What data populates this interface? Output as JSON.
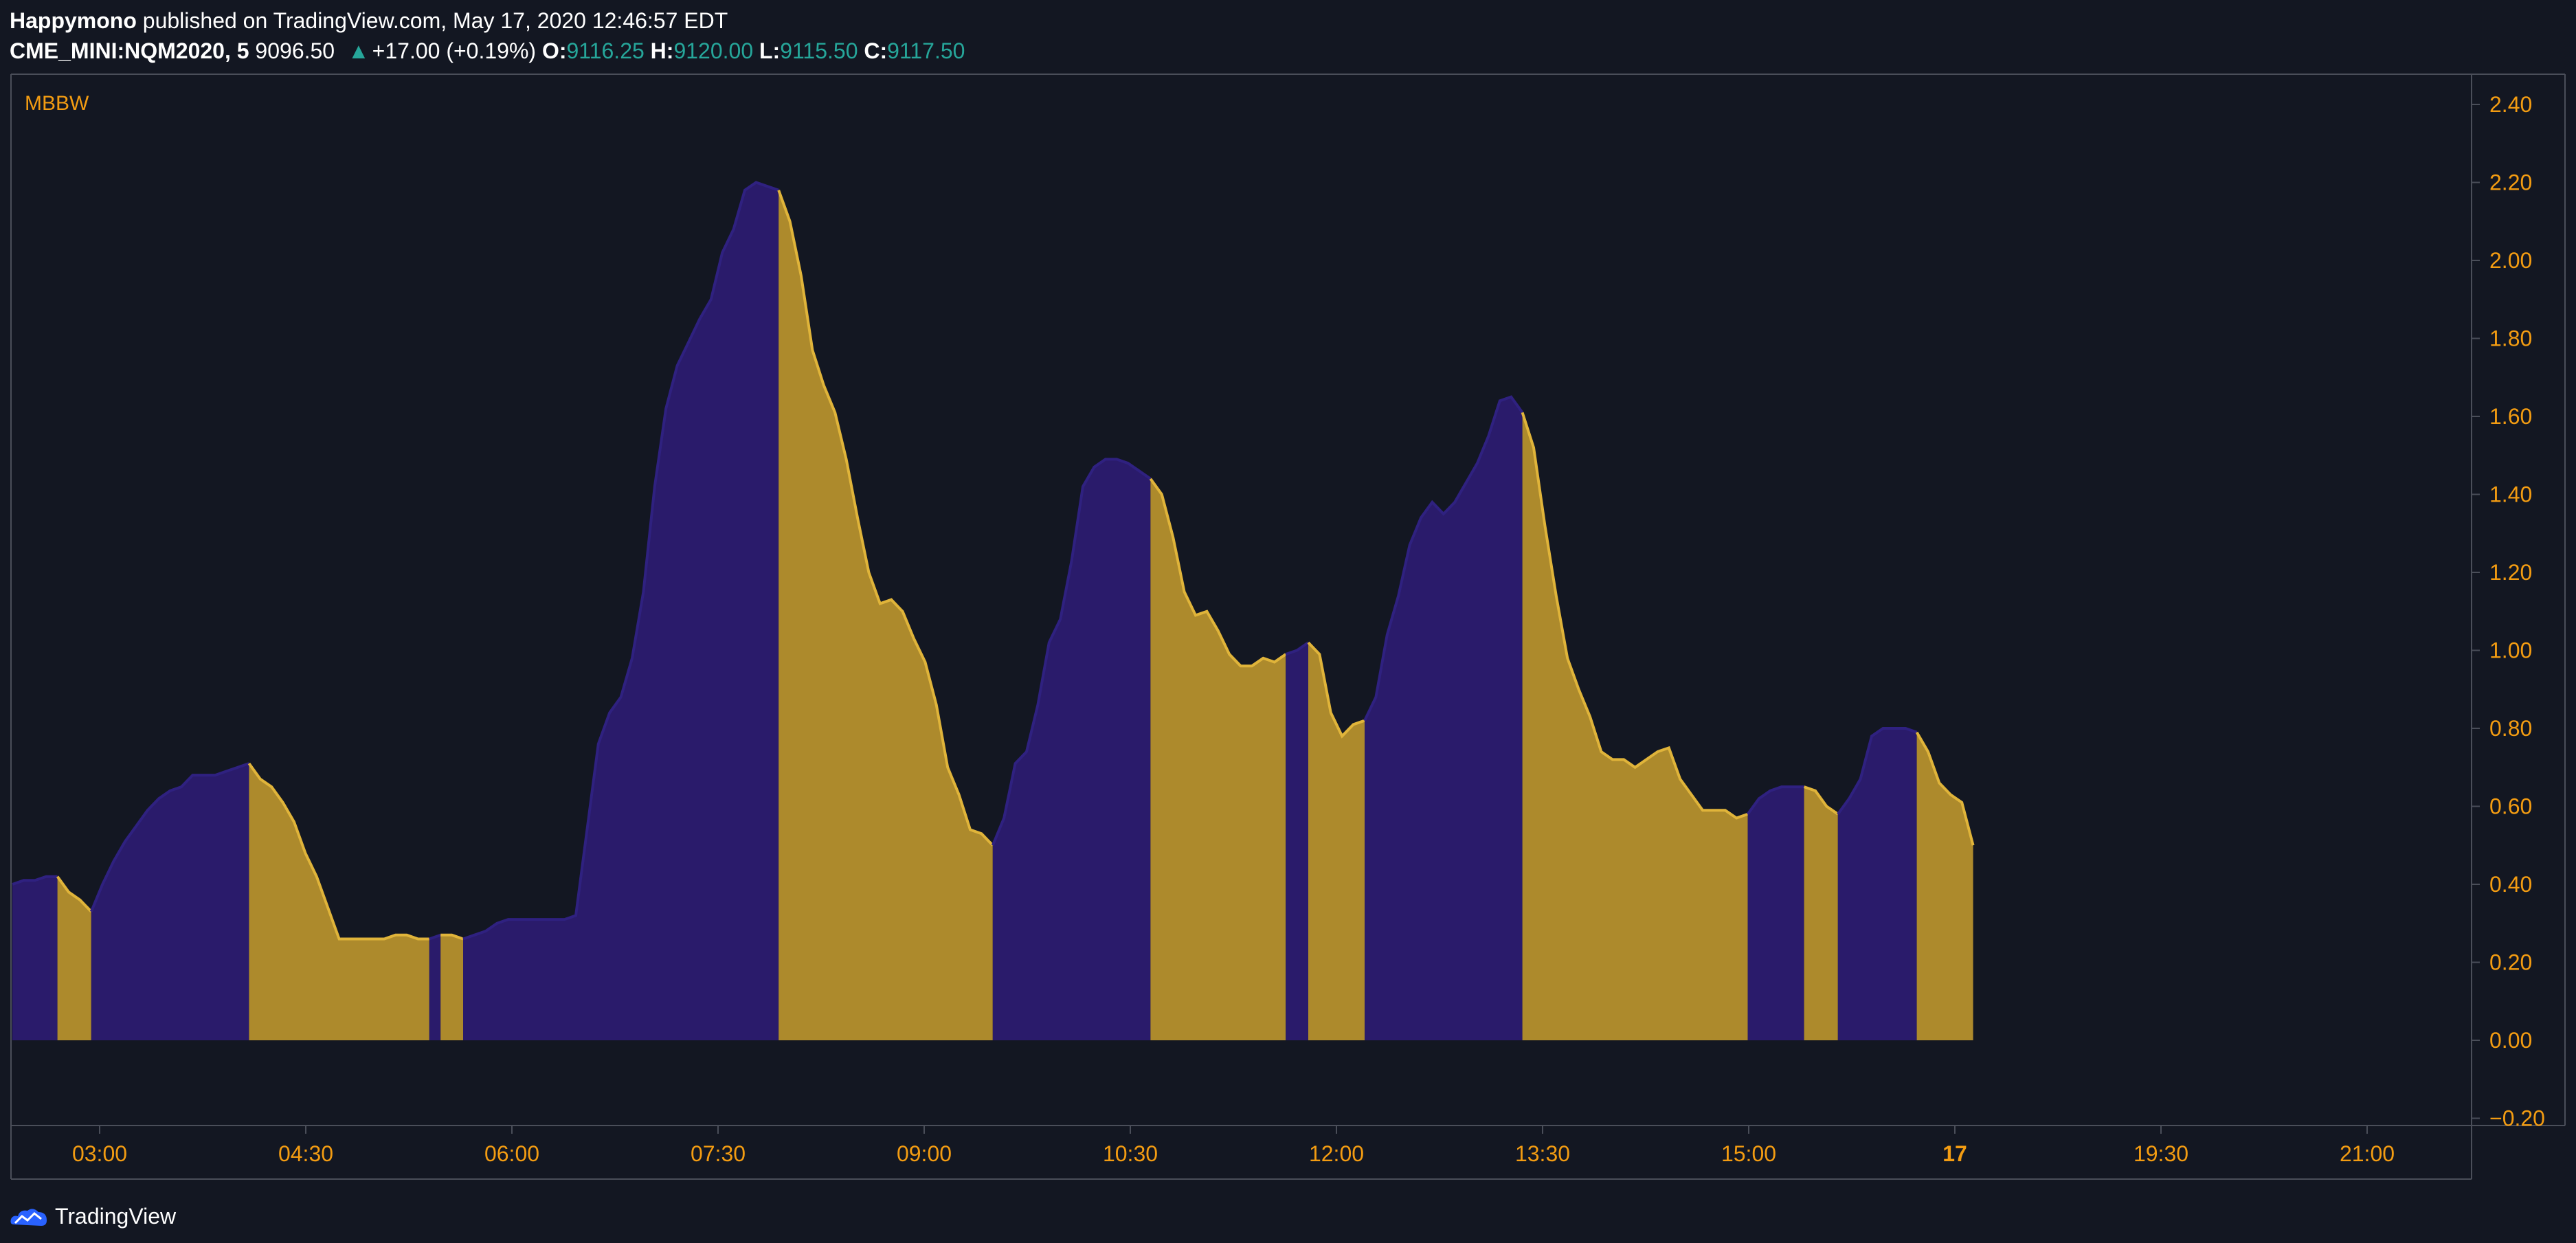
{
  "header": {
    "author": "Happymono",
    "published_text": "published on TradingView.com, May 17, 2020 12:46:57 EDT",
    "symbol": "CME_MINI:NQM2020, 5",
    "price": "9096.50",
    "change": "+17.00 (+0.19%)",
    "o_label": "O:",
    "o_value": "9116.25",
    "h_label": "H:",
    "h_value": "9120.00",
    "l_label": "L:",
    "l_value": "9115.50",
    "c_label": "C:",
    "c_value": "9117.50"
  },
  "footer": {
    "brand": "TradingView"
  },
  "colors": {
    "background": "#131722",
    "rising_fill": "#2a1b6b",
    "falling_fill": "#ad8a2c",
    "falling_line": "#e0b43a",
    "axis_text": "#f39c12",
    "green": "#26a69a"
  },
  "chart_data": {
    "type": "area",
    "indicator_label": "MBBW",
    "ylim": [
      -0.2,
      2.4
    ],
    "y_ticks": [
      "2.40",
      "2.20",
      "2.00",
      "1.80",
      "1.60",
      "1.40",
      "1.20",
      "1.00",
      "0.80",
      "0.60",
      "0.40",
      "0.20",
      "0.00",
      "−0.20"
    ],
    "y_tick_values": [
      2.4,
      2.2,
      2.0,
      1.8,
      1.6,
      1.4,
      1.2,
      1.0,
      0.8,
      0.6,
      0.4,
      0.2,
      0.0,
      -0.2
    ],
    "x_ticks": [
      "03:00",
      "04:30",
      "06:00",
      "07:30",
      "09:00",
      "10:30",
      "12:00",
      "13:30",
      "15:00",
      "17",
      "19:30",
      "21:00"
    ],
    "x_tick_bold": [
      false,
      false,
      false,
      false,
      false,
      false,
      false,
      false,
      false,
      true,
      false,
      false
    ],
    "grid": false,
    "series": [
      {
        "values": [
          0.4,
          0.41,
          0.41,
          0.42,
          0.42
        ]
      },
      {
        "values": [
          0.42,
          0.38,
          0.36,
          0.33
        ]
      },
      {
        "values": [
          0.33,
          0.4,
          0.46,
          0.51,
          0.55,
          0.59,
          0.62,
          0.64,
          0.65,
          0.68,
          0.68,
          0.68,
          0.69,
          0.7,
          0.71
        ]
      },
      {
        "values": [
          0.71,
          0.67,
          0.65,
          0.61,
          0.56,
          0.48,
          0.42,
          0.34,
          0.26,
          0.26,
          0.26,
          0.26,
          0.26,
          0.27,
          0.27,
          0.26,
          0.26
        ]
      },
      {
        "values": [
          0.26,
          0.27
        ]
      },
      {
        "values": [
          0.27,
          0.27,
          0.26
        ]
      },
      {
        "values": [
          0.26,
          0.27,
          0.28,
          0.3,
          0.31,
          0.31,
          0.31,
          0.31,
          0.31,
          0.31,
          0.32,
          0.54,
          0.76,
          0.84,
          0.88,
          0.98,
          1.15,
          1.42,
          1.62,
          1.73,
          1.79,
          1.85,
          1.9,
          2.02,
          2.08,
          2.18,
          2.2,
          2.19,
          2.18
        ]
      },
      {
        "values": [
          2.18,
          2.1,
          1.96,
          1.77,
          1.68,
          1.61,
          1.49,
          1.34,
          1.2,
          1.12,
          1.13,
          1.1,
          1.03,
          0.97,
          0.86,
          0.7,
          0.63,
          0.54,
          0.53,
          0.5
        ]
      },
      {
        "values": [
          0.5,
          0.57,
          0.71,
          0.74,
          0.86,
          1.02,
          1.08,
          1.23,
          1.42,
          1.47,
          1.49,
          1.49,
          1.48,
          1.46,
          1.44
        ]
      },
      {
        "values": [
          1.44,
          1.4,
          1.29,
          1.15,
          1.09,
          1.1,
          1.05,
          0.99,
          0.96,
          0.96,
          0.98,
          0.97,
          0.99
        ]
      },
      {
        "values": [
          0.99,
          1.0,
          1.02
        ]
      },
      {
        "values": [
          1.02,
          0.99,
          0.84,
          0.78,
          0.81,
          0.82
        ]
      },
      {
        "values": [
          0.82,
          0.88,
          1.04,
          1.14,
          1.27,
          1.34,
          1.38,
          1.35,
          1.38,
          1.43,
          1.48,
          1.55,
          1.64,
          1.65,
          1.61
        ]
      },
      {
        "values": [
          1.61,
          1.52,
          1.32,
          1.14,
          0.98,
          0.9,
          0.83,
          0.74,
          0.72,
          0.72,
          0.7,
          0.72,
          0.74,
          0.75,
          0.67,
          0.63,
          0.59,
          0.59,
          0.59,
          0.57,
          0.58
        ]
      },
      {
        "values": [
          0.58,
          0.62,
          0.64,
          0.65,
          0.65,
          0.65
        ]
      },
      {
        "values": [
          0.65,
          0.64,
          0.6,
          0.58
        ]
      },
      {
        "values": [
          0.58,
          0.62,
          0.67,
          0.78,
          0.8,
          0.8,
          0.8,
          0.79
        ]
      },
      {
        "values": [
          0.79,
          0.74,
          0.66,
          0.63,
          0.61,
          0.5
        ]
      }
    ]
  }
}
